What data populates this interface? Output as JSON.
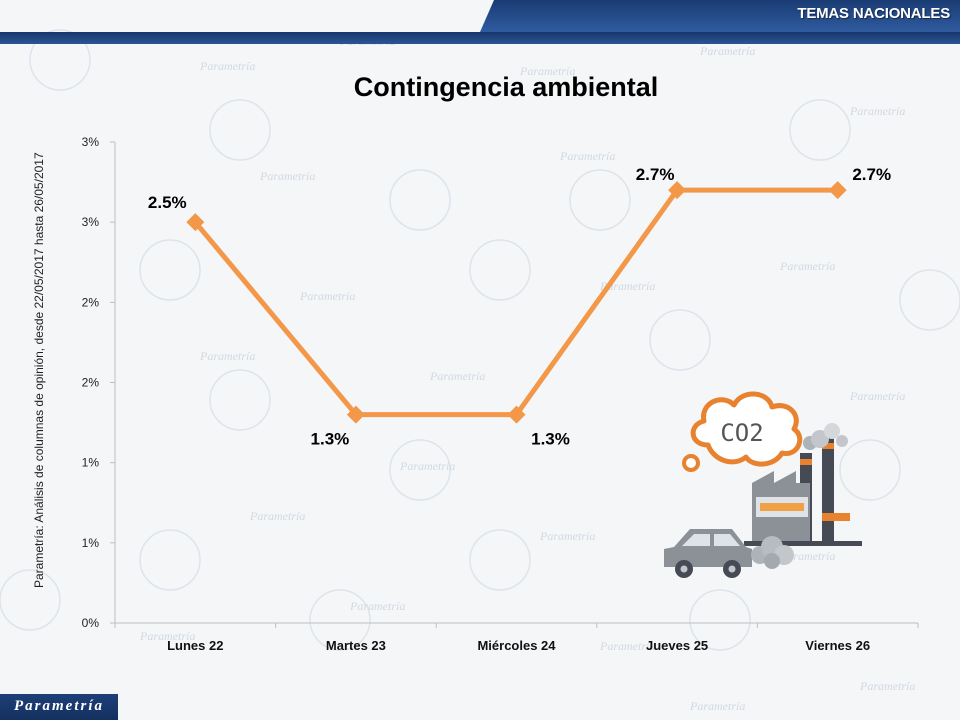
{
  "header": {
    "section": "TEMAS NACIONALES"
  },
  "side_note": "Parametría: Análisis de columnas de opinión, desde 22/05/2017 hasta 26/05/2017",
  "footer": {
    "brand": "Parametría"
  },
  "illustration": {
    "label": "CO2",
    "icons": [
      "co2-cloud-icon",
      "factory-icon",
      "car-icon"
    ]
  },
  "colors": {
    "line": "#f39748",
    "header": "#1f437f",
    "axis": "#bfbfbf"
  },
  "chart_data": {
    "type": "line",
    "title": "Contingencia ambiental",
    "categories": [
      "Lunes 22",
      "Martes 23",
      "Miércoles 24",
      "Jueves 25",
      "Viernes 26"
    ],
    "values": [
      2.5,
      1.3,
      1.3,
      2.7,
      2.7
    ],
    "data_labels": [
      "2.5%",
      "1.3%",
      "1.3%",
      "2.7%",
      "2.7%"
    ],
    "y_ticks": [
      0,
      0.5,
      1,
      1.5,
      2,
      2.5,
      3
    ],
    "y_tick_labels": [
      "0%",
      "1%",
      "1%",
      "2%",
      "2%",
      "3%",
      "3%"
    ],
    "ylim": [
      0,
      3
    ],
    "grid": false,
    "legend": "none"
  }
}
